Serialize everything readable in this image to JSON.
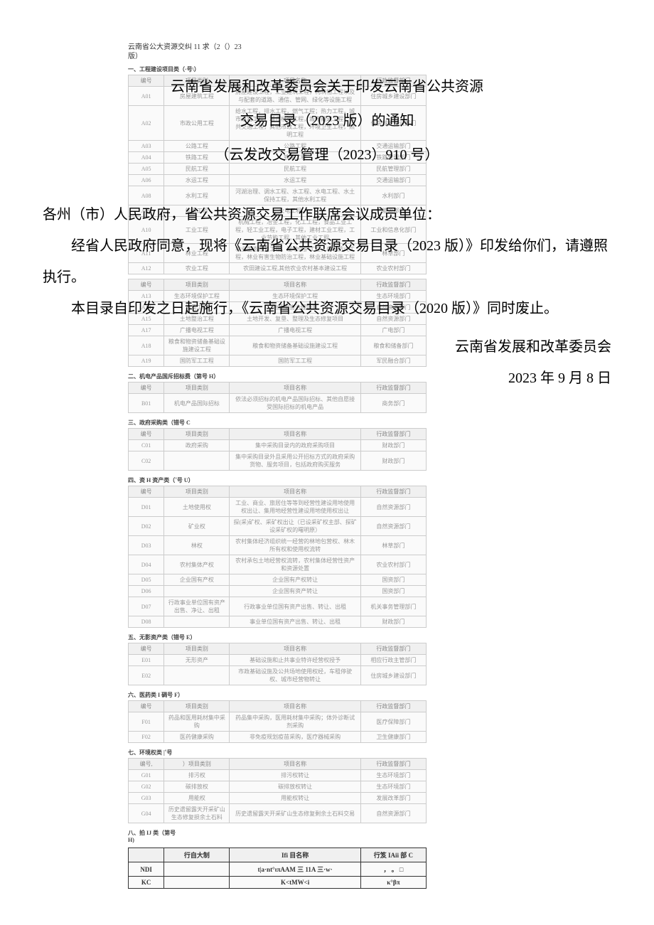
{
  "small_head_line1": "云南省公大资源交纠 11 求（2（）23",
  "small_head_line2": "版）",
  "title_line1": "云南省发展和改革委员会关于印发云南省公共资源",
  "title_line2": "交易目录（2023 版）的通知",
  "doc_num": "（云发改交易管理（2023）910 号）",
  "addressee": "各州（市）人民政府，省公共资源交易工作联席会议成员单位：",
  "para1": "经省人民政府同意，现将《云南省公共资源交易目录（2023 版）》印发给你们，请遵照执行。",
  "para2": "本目录自印发之日起施行，《云南省公共资源交易目录（2020 版）》同时废止。",
  "signature": "云南省发展和改革委员会",
  "date": "2023 年 9 月 8 日",
  "section1_title": "一、工程建设项目类（·号\\）",
  "columns": [
    "编号",
    "项目类别",
    "项目名称",
    "行政监督部门"
  ],
  "t1": [
    [
      "A01",
      "房屋建筑工程",
      "房屋建设工程，工业建筑工程，构筑物工程以及与配套的道路、通信、管网、绿化等设施工程",
      "住房城乡建设部门"
    ],
    [
      "A02",
      "市政公用工程",
      "给水工程，排水工程，燃气工程；热力工程，城市道路工程，城市桥梁工程，城市隧道工程，公共交通工程，其他市政工程，环境卫生工程，照明工程",
      "住房城乡建设部门"
    ],
    [
      "A03",
      "公路工程",
      "公路工程",
      "交通运输部门"
    ],
    [
      "A04",
      "铁路工程",
      "铁路工程",
      "铁路管理部门"
    ],
    [
      "A05",
      "民航工程",
      "民航工程",
      "民航管理部门"
    ],
    [
      "A06",
      "水运工程",
      "水运工程",
      "交通运输部门"
    ],
    [
      "A08",
      "水利工程",
      "河湖治理、调水工程、水工程、水电工程、水土保持工程，其他水利工程",
      "水利部门"
    ],
    [
      "A09",
      "能源工程",
      "火电工程，...",
      "能源部门"
    ],
    [
      "A10",
      "工业工程",
      "机械工程，冶金工程，化工工程，食品工业工程，轻工业工程，电子工程，建材工业工程，工业节能工程，其他工业工程",
      "工业和信息化部门"
    ],
    [
      "A11",
      "林业工程",
      "林业生态修复工程，湿地保护工程，森林防火工程，林业有害生物防治工程，林业基础设施工程",
      "林草部门"
    ],
    [
      "A12",
      "农业工程",
      "农田建设工程,其他农业农村基本建设工程",
      "农业农村部门"
    ]
  ],
  "t1b": [
    [
      "A13",
      "生态环境保护工程",
      "生态环境保护工程",
      "生态环境部门"
    ],
    [
      "A14",
      "地质工程",
      "地质灾害治理项目",
      "自然资源部门"
    ],
    [
      "A15",
      "土地整治工程",
      "土地开发、复垦、整理及生态修复项目",
      "自然资源部门"
    ],
    [
      "A17",
      "广播电视工程",
      "广播电视工程",
      "广电部门"
    ],
    [
      "A18",
      "粮食和物资储备基础设施建设工程",
      "粮食和物资储备基础设施建设工程",
      "粮食和储备部门"
    ],
    [
      "A19",
      "国防军工工程",
      "国防军工工程",
      "军民融合部门"
    ]
  ],
  "section2_title": "二、机电产品国斥招标费（第号 H）",
  "t2": [
    [
      "B01",
      "机电产品国际招标",
      "依法必须招标的机电产品国际招标、其他自愿接受国际招标的机电产品",
      "商务部门"
    ]
  ],
  "section3_title": "三、政府采购类（错号 C",
  "t3": [
    [
      "C01",
      "政府采购",
      "集中采购目录内的政府采购项目",
      "财政部门"
    ],
    [
      "C02",
      "",
      "集中采购目录外且采用公开招标方式的政府采购货物、服务项目，包括政府购买服务",
      "财政部门"
    ]
  ],
  "section4_title": "四、资 H 资产类（˚号 U）",
  "t4": [
    [
      "D01",
      "土地使用权",
      "工业、商业、旅居住等等到经营性建设用地使用权出让、集用地经营性建设用地使用权出让",
      "自然资源部门"
    ],
    [
      "D02",
      "矿业权",
      "探(采)矿权、采矿权出让（已设采矿权主部、探矿设采矿权的曙明原）",
      "自然资源部门"
    ],
    [
      "D03",
      "林权",
      "农村集体经济组织统一经营的林地包营权、林木所有权和使用权流转",
      "林草部门"
    ],
    [
      "D04",
      "农村集体产权",
      "农村承包土地经营权流转，农村集体经营性资产和资源处置",
      "农业农村部门"
    ],
    [
      "D05",
      "企业国有产权",
      "企业国有产权转让",
      "国资部门"
    ],
    [
      "D06",
      "",
      "企业国有资产转让",
      "国资部门"
    ],
    [
      "D07",
      "行政事业单位国有资产出售、净让、出租",
      "行政事业单位国有资产出售、转让、出租",
      "机关事务管理部门"
    ],
    [
      "D08",
      "",
      "事业单位国有资产出售、转让、出租",
      "财政部门"
    ]
  ],
  "section5_title": "五、无影资产类（错号 E）",
  "t5": [
    [
      "E01",
      "无形资产",
      "基础设施和止共事业特许经营权授予",
      "相应行政主管部门"
    ],
    [
      "E02",
      "",
      "市政基础设施及公共场地使用权经，车租停驶权、城市经营物转让",
      "住房城乡建设部门"
    ]
  ],
  "section6_title": "六、医药类 I 碉号 F）",
  "t6": [
    [
      "F01",
      "药品和医用耗材集中采购",
      "药品集中采购，医用耗材集中采购；体外诊断试剂采购",
      "医疗保障部门"
    ],
    [
      "F02",
      "医药健康采购",
      "非免疫规划疫苗采购，医疗器械采购",
      "卫生健康部门"
    ]
  ],
  "section7_title": "七、环境权类  |˚号",
  "columns7": [
    "编号,",
    "）项目类别",
    "项目名称",
    "行政监督部门"
  ],
  "t7": [
    [
      "G01",
      "排污权",
      "排污权转让",
      "生态环境部门"
    ],
    [
      "G02",
      "碳排放权",
      "碳排放权转让",
      "生态环境部门"
    ],
    [
      "G03",
      "用能权",
      "用能权转让",
      "发展改革部门"
    ],
    [
      "G04",
      "历史遗留露天开采矿山生态修复损余土石料",
      "历史遗留露天开采矿山生态修复剩余土石料交易",
      "自然资源部门"
    ]
  ],
  "section8_title": "八、拍 IJ 类（第号",
  "section8_title2": "H)",
  "columns8": [
    "",
    "行自大制",
    "Ifi 目名称",
    "行笈 IAii 部 C"
  ],
  "t8": [
    [
      "NDI",
      "",
      "t|a·nt°ιπAAM 三 11A 三·w·",
      "， 。 □"
    ],
    [
      "KC",
      "",
      "K<tMW<i",
      "κ°βπ"
    ]
  ]
}
